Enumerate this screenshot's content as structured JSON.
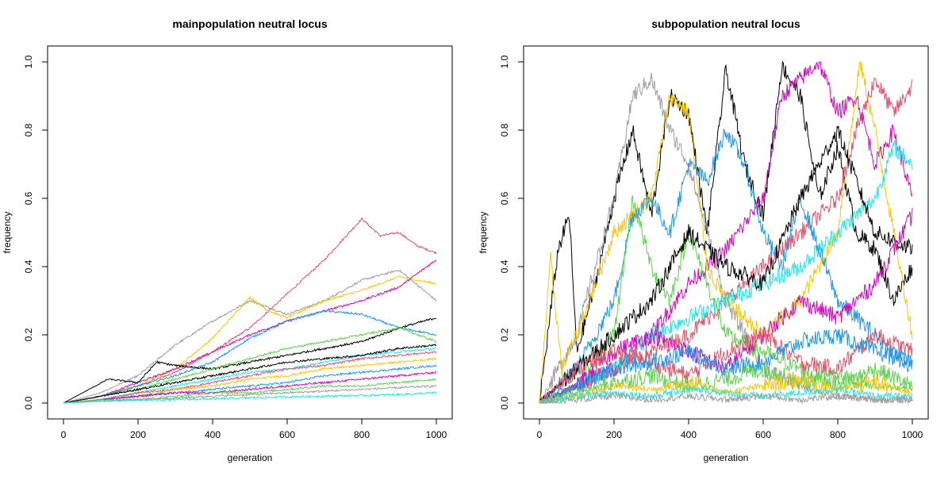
{
  "palette": [
    "#000000",
    "#DF536B",
    "#61D04F",
    "#2297E6",
    "#28E2E5",
    "#CD0BBC",
    "#F5C710",
    "#9E9E9E"
  ],
  "chart_data": [
    {
      "type": "line",
      "title": "mainpopulation neutral locus",
      "xlabel": "generation",
      "ylabel": "frequency",
      "xlim": [
        0,
        1000
      ],
      "ylim": [
        0,
        1.0
      ],
      "xticks": [
        "0",
        "200",
        "400",
        "600",
        "800",
        "1000"
      ],
      "yticks": [
        "0.0",
        "0.2",
        "0.4",
        "0.6",
        "0.8",
        "1.0"
      ],
      "grid": false,
      "legend": "none",
      "series": [
        {
          "color": "#DF536B",
          "x": [
            0,
            100,
            200,
            300,
            400,
            500,
            600,
            700,
            750,
            800,
            850,
            900,
            950,
            1000
          ],
          "y": [
            0,
            0.02,
            0.05,
            0.09,
            0.15,
            0.22,
            0.32,
            0.42,
            0.48,
            0.54,
            0.49,
            0.5,
            0.46,
            0.44
          ]
        },
        {
          "color": "#9E9E9E",
          "x": [
            0,
            100,
            200,
            300,
            400,
            500,
            600,
            700,
            800,
            900,
            1000
          ],
          "y": [
            0,
            0.03,
            0.08,
            0.17,
            0.24,
            0.3,
            0.26,
            0.3,
            0.36,
            0.39,
            0.3
          ]
        },
        {
          "color": "#F5C710",
          "x": [
            0,
            100,
            200,
            300,
            400,
            500,
            550,
            600,
            700,
            800,
            900,
            1000
          ],
          "y": [
            0,
            0.02,
            0.05,
            0.1,
            0.19,
            0.31,
            0.27,
            0.25,
            0.3,
            0.33,
            0.37,
            0.35
          ]
        },
        {
          "color": "#CD0BBC",
          "x": [
            0,
            100,
            200,
            300,
            400,
            500,
            600,
            700,
            800,
            900,
            1000
          ],
          "y": [
            0,
            0.02,
            0.06,
            0.1,
            0.15,
            0.2,
            0.24,
            0.27,
            0.3,
            0.34,
            0.42
          ]
        },
        {
          "color": "#2297E6",
          "x": [
            0,
            100,
            200,
            300,
            400,
            500,
            600,
            700,
            800,
            900,
            1000
          ],
          "y": [
            0,
            0.02,
            0.05,
            0.08,
            0.12,
            0.19,
            0.24,
            0.27,
            0.26,
            0.22,
            0.2
          ]
        },
        {
          "color": "#000000",
          "x": [
            0,
            120,
            200,
            250,
            300,
            400,
            500,
            600,
            700,
            800,
            900,
            1000
          ],
          "y": [
            0,
            0.07,
            0.06,
            0.12,
            0.11,
            0.1,
            0.12,
            0.14,
            0.16,
            0.18,
            0.22,
            0.25
          ]
        },
        {
          "color": "#61D04F",
          "x": [
            0,
            100,
            200,
            300,
            400,
            500,
            600,
            700,
            800,
            900,
            1000
          ],
          "y": [
            0,
            0.02,
            0.04,
            0.07,
            0.1,
            0.13,
            0.16,
            0.18,
            0.2,
            0.22,
            0.18
          ]
        },
        {
          "color": "#28E2E5",
          "x": [
            0,
            100,
            200,
            300,
            400,
            500,
            600,
            700,
            800,
            900,
            1000
          ],
          "y": [
            0,
            0.01,
            0.03,
            0.05,
            0.07,
            0.09,
            0.1,
            0.12,
            0.14,
            0.15,
            0.16
          ]
        },
        {
          "color": "#000000",
          "x": [
            0,
            100,
            200,
            300,
            400,
            500,
            600,
            700,
            800,
            900,
            1000
          ],
          "y": [
            0,
            0.02,
            0.04,
            0.06,
            0.08,
            0.1,
            0.12,
            0.13,
            0.14,
            0.16,
            0.17
          ]
        },
        {
          "color": "#DF536B",
          "x": [
            0,
            100,
            200,
            300,
            400,
            500,
            600,
            700,
            800,
            900,
            1000
          ],
          "y": [
            0,
            0.01,
            0.03,
            0.04,
            0.06,
            0.08,
            0.1,
            0.11,
            0.13,
            0.14,
            0.15
          ]
        },
        {
          "color": "#F5C710",
          "x": [
            0,
            100,
            200,
            300,
            400,
            500,
            600,
            700,
            800,
            900,
            1000
          ],
          "y": [
            0,
            0.01,
            0.02,
            0.04,
            0.05,
            0.07,
            0.08,
            0.1,
            0.11,
            0.12,
            0.13
          ]
        },
        {
          "color": "#2297E6",
          "x": [
            0,
            100,
            200,
            300,
            400,
            500,
            600,
            700,
            800,
            900,
            1000
          ],
          "y": [
            0,
            0.01,
            0.02,
            0.03,
            0.04,
            0.05,
            0.06,
            0.08,
            0.09,
            0.1,
            0.11
          ]
        },
        {
          "color": "#CD0BBC",
          "x": [
            0,
            100,
            200,
            300,
            400,
            500,
            600,
            700,
            800,
            900,
            1000
          ],
          "y": [
            0,
            0.01,
            0.02,
            0.03,
            0.03,
            0.04,
            0.05,
            0.06,
            0.07,
            0.08,
            0.09
          ]
        },
        {
          "color": "#61D04F",
          "x": [
            0,
            100,
            200,
            300,
            400,
            500,
            600,
            700,
            800,
            900,
            1000
          ],
          "y": [
            0,
            0.01,
            0.01,
            0.02,
            0.03,
            0.03,
            0.04,
            0.05,
            0.05,
            0.06,
            0.07
          ]
        },
        {
          "color": "#9E9E9E",
          "x": [
            0,
            100,
            200,
            300,
            400,
            500,
            600,
            700,
            800,
            900,
            1000
          ],
          "y": [
            0,
            0.005,
            0.01,
            0.015,
            0.02,
            0.025,
            0.03,
            0.035,
            0.04,
            0.045,
            0.05
          ]
        },
        {
          "color": "#28E2E5",
          "x": [
            0,
            100,
            200,
            300,
            400,
            500,
            600,
            700,
            800,
            900,
            1000
          ],
          "y": [
            0,
            0.005,
            0.008,
            0.01,
            0.012,
            0.015,
            0.018,
            0.02,
            0.022,
            0.025,
            0.03
          ]
        }
      ]
    },
    {
      "type": "line",
      "title": "subpopulation neutral locus",
      "xlabel": "generation",
      "ylabel": "frequency",
      "xlim": [
        0,
        1000
      ],
      "ylim": [
        0,
        1.0
      ],
      "xticks": [
        "0",
        "200",
        "400",
        "600",
        "800",
        "1000"
      ],
      "yticks": [
        "0.0",
        "0.2",
        "0.4",
        "0.6",
        "0.8",
        "1.0"
      ],
      "grid": false,
      "legend": "none",
      "series": [
        {
          "color": "#000000",
          "x": [
            0,
            50,
            80,
            100,
            150,
            200,
            250,
            300,
            350,
            400,
            450,
            500,
            550,
            600,
            650,
            700,
            750,
            800,
            850,
            900,
            950,
            1000
          ],
          "y": [
            0,
            0.45,
            0.55,
            0.15,
            0.35,
            0.6,
            0.8,
            0.55,
            0.9,
            0.85,
            0.5,
            0.98,
            0.7,
            0.55,
            0.99,
            0.9,
            0.6,
            0.75,
            0.5,
            0.45,
            0.3,
            0.4
          ]
        },
        {
          "color": "#9E9E9E",
          "x": [
            0,
            100,
            200,
            250,
            300,
            350,
            400,
            450,
            500,
            550,
            600,
            700,
            800,
            900,
            1000
          ],
          "y": [
            0,
            0.2,
            0.6,
            0.9,
            0.95,
            0.8,
            0.7,
            0.5,
            0.3,
            0.2,
            0.1,
            0.05,
            0.02,
            0.01,
            0.01
          ]
        },
        {
          "color": "#CD0BBC",
          "x": [
            0,
            100,
            200,
            300,
            400,
            500,
            600,
            650,
            700,
            750,
            800,
            850,
            900,
            950,
            1000
          ],
          "y": [
            0,
            0.05,
            0.1,
            0.2,
            0.35,
            0.45,
            0.6,
            0.9,
            0.95,
            1.0,
            0.85,
            0.9,
            0.7,
            0.8,
            0.6
          ]
        },
        {
          "color": "#F5C710",
          "x": [
            0,
            30,
            60,
            100,
            200,
            300,
            350,
            400,
            450,
            500,
            600,
            700,
            800,
            860,
            900,
            1000
          ],
          "y": [
            0,
            0.42,
            0.1,
            0.2,
            0.5,
            0.6,
            0.9,
            0.85,
            0.4,
            0.3,
            0.2,
            0.3,
            0.5,
            1.0,
            0.8,
            0.2
          ]
        },
        {
          "color": "#DF536B",
          "x": [
            0,
            100,
            200,
            300,
            400,
            500,
            600,
            700,
            800,
            850,
            900,
            950,
            1000
          ],
          "y": [
            0,
            0.05,
            0.1,
            0.15,
            0.2,
            0.3,
            0.4,
            0.5,
            0.6,
            0.8,
            0.95,
            0.85,
            0.93
          ]
        },
        {
          "color": "#2297E6",
          "x": [
            0,
            100,
            200,
            250,
            300,
            350,
            400,
            450,
            500,
            550,
            600,
            650,
            700,
            800,
            900,
            1000
          ],
          "y": [
            0,
            0.1,
            0.3,
            0.55,
            0.6,
            0.5,
            0.7,
            0.65,
            0.8,
            0.7,
            0.5,
            0.4,
            0.6,
            0.3,
            0.2,
            0.1
          ]
        },
        {
          "color": "#28E2E5",
          "x": [
            0,
            100,
            200,
            300,
            400,
            500,
            600,
            700,
            800,
            900,
            950,
            1000
          ],
          "y": [
            0,
            0.05,
            0.1,
            0.2,
            0.25,
            0.3,
            0.35,
            0.4,
            0.5,
            0.6,
            0.75,
            0.7
          ]
        },
        {
          "color": "#61D04F",
          "x": [
            0,
            100,
            200,
            250,
            300,
            350,
            400,
            500,
            600,
            700,
            800,
            900,
            1000
          ],
          "y": [
            0,
            0.05,
            0.2,
            0.6,
            0.4,
            0.3,
            0.5,
            0.2,
            0.15,
            0.1,
            0.05,
            0.1,
            0.05
          ]
        },
        {
          "color": "#000000",
          "x": [
            0,
            100,
            200,
            300,
            400,
            500,
            600,
            700,
            800,
            900,
            1000
          ],
          "y": [
            0,
            0.1,
            0.2,
            0.3,
            0.5,
            0.4,
            0.35,
            0.6,
            0.8,
            0.5,
            0.45
          ]
        },
        {
          "color": "#CD0BBC",
          "x": [
            0,
            100,
            200,
            300,
            400,
            500,
            600,
            700,
            800,
            900,
            1000
          ],
          "y": [
            0,
            0.05,
            0.15,
            0.2,
            0.15,
            0.1,
            0.2,
            0.3,
            0.25,
            0.35,
            0.55
          ]
        },
        {
          "color": "#DF536B",
          "x": [
            0,
            100,
            200,
            300,
            400,
            500,
            600,
            700,
            800,
            900,
            1000
          ],
          "y": [
            0,
            0.1,
            0.15,
            0.12,
            0.08,
            0.15,
            0.2,
            0.12,
            0.1,
            0.2,
            0.15
          ]
        },
        {
          "color": "#2297E6",
          "x": [
            0,
            100,
            200,
            300,
            400,
            500,
            600,
            700,
            800,
            900,
            1000
          ],
          "y": [
            0,
            0.05,
            0.1,
            0.12,
            0.15,
            0.1,
            0.12,
            0.18,
            0.2,
            0.15,
            0.12
          ]
        },
        {
          "color": "#61D04F",
          "x": [
            0,
            100,
            200,
            300,
            400,
            500,
            600,
            700,
            800,
            900,
            1000
          ],
          "y": [
            0,
            0.03,
            0.06,
            0.08,
            0.05,
            0.07,
            0.1,
            0.06,
            0.08,
            0.05,
            0.04
          ]
        },
        {
          "color": "#F5C710",
          "x": [
            0,
            100,
            200,
            300,
            400,
            500,
            600,
            700,
            800,
            900,
            1000
          ],
          "y": [
            0,
            0.02,
            0.05,
            0.04,
            0.06,
            0.03,
            0.05,
            0.07,
            0.04,
            0.06,
            0.03
          ]
        },
        {
          "color": "#28E2E5",
          "x": [
            0,
            100,
            200,
            300,
            400,
            500,
            600,
            700,
            800,
            900,
            1000
          ],
          "y": [
            0,
            0.02,
            0.03,
            0.02,
            0.04,
            0.03,
            0.02,
            0.03,
            0.04,
            0.02,
            0.02
          ]
        },
        {
          "color": "#9E9E9E",
          "x": [
            0,
            100,
            200,
            300,
            400,
            500,
            600,
            700,
            800,
            900,
            1000
          ],
          "y": [
            0,
            0.01,
            0.02,
            0.01,
            0.02,
            0.01,
            0.02,
            0.01,
            0.02,
            0.01,
            0.01
          ]
        }
      ]
    }
  ]
}
